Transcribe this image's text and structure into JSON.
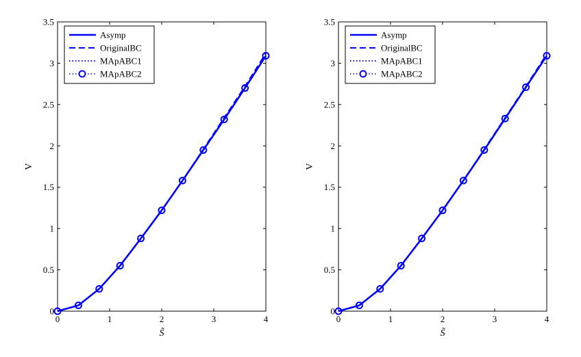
{
  "chart_data": [
    {
      "type": "line",
      "xlabel": "S̃",
      "ylabel": "V",
      "xlim": [
        0,
        4
      ],
      "ylim": [
        0,
        3.5
      ],
      "xticks": [
        "0",
        "1",
        "2",
        "3",
        "4"
      ],
      "yticks": [
        "0",
        "0.5",
        "1",
        "1.5",
        "2",
        "2.5",
        "3",
        "3.5"
      ],
      "legend_position": "top-left",
      "grid": false,
      "x": [
        0,
        0.4,
        0.8,
        1.2,
        1.6,
        2.0,
        2.4,
        2.8,
        3.2,
        3.6,
        4.0
      ],
      "series": [
        {
          "name": "Asymp",
          "style": "solid",
          "color": "#0000ff",
          "values": [
            0,
            0.07,
            0.27,
            0.55,
            0.88,
            1.22,
            1.58,
            1.95,
            2.32,
            2.7,
            3.09
          ]
        },
        {
          "name": "OriginalBC",
          "style": "dashed",
          "color": "#0000ff",
          "values": [
            0,
            0.07,
            0.27,
            0.55,
            0.88,
            1.22,
            1.58,
            1.96,
            2.34,
            2.72,
            3.12
          ]
        },
        {
          "name": "MApABC1",
          "style": "dotted",
          "color": "#0000ff",
          "values": [
            0,
            0.07,
            0.27,
            0.55,
            0.88,
            1.22,
            1.58,
            1.95,
            2.32,
            2.7,
            3.09
          ]
        },
        {
          "name": "MApABC2",
          "style": "dotted-circle",
          "color": "#0000ff",
          "values": [
            0,
            0.07,
            0.27,
            0.55,
            0.88,
            1.22,
            1.58,
            1.95,
            2.32,
            2.7,
            3.09
          ]
        }
      ]
    },
    {
      "type": "line",
      "xlabel": "S̃",
      "ylabel": "V",
      "xlim": [
        0,
        4
      ],
      "ylim": [
        0,
        3.5
      ],
      "xticks": [
        "0",
        "1",
        "2",
        "3",
        "4"
      ],
      "yticks": [
        "0",
        "0.5",
        "1",
        "1.5",
        "2",
        "2.5",
        "3",
        "3.5"
      ],
      "legend_position": "top-left",
      "grid": false,
      "x": [
        0,
        0.4,
        0.8,
        1.2,
        1.6,
        2.0,
        2.4,
        2.8,
        3.2,
        3.6,
        4.0
      ],
      "series": [
        {
          "name": "Asymp",
          "style": "solid",
          "color": "#0000ff",
          "values": [
            0,
            0.07,
            0.27,
            0.55,
            0.88,
            1.22,
            1.58,
            1.95,
            2.33,
            2.71,
            3.09
          ]
        },
        {
          "name": "OriginalBC",
          "style": "dashed",
          "color": "#0000ff",
          "values": [
            0,
            0.07,
            0.27,
            0.55,
            0.88,
            1.22,
            1.58,
            1.96,
            2.34,
            2.72,
            3.11
          ]
        },
        {
          "name": "MApABC1",
          "style": "dotted",
          "color": "#0000ff",
          "values": [
            0,
            0.07,
            0.27,
            0.55,
            0.88,
            1.22,
            1.58,
            1.95,
            2.33,
            2.71,
            3.09
          ]
        },
        {
          "name": "MApABC2",
          "style": "dotted-circle",
          "color": "#0000ff",
          "values": [
            0,
            0.07,
            0.27,
            0.55,
            0.88,
            1.22,
            1.58,
            1.95,
            2.33,
            2.71,
            3.09
          ]
        }
      ]
    }
  ]
}
